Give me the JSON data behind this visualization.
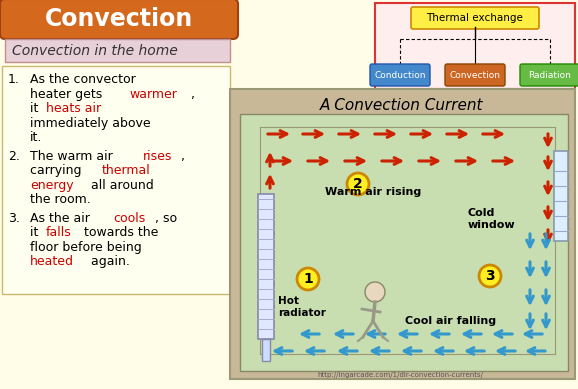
{
  "bg_color": "#fffde7",
  "title_text": "Convection",
  "title_bg": "#d4691e",
  "title_text_color": "white",
  "subtitle_text": "Convection in the home",
  "subtitle_bg": "#e8d0d8",
  "subtitle_text_color": "#333333",
  "subtitle_border": "#c09090",
  "diagram_title": "A Convection Current",
  "diagram_bg": "#c8b898",
  "room_bg": "#c8ddb0",
  "thermal_box_color": "#ffee44",
  "thermal_border": "#cc8800",
  "conduction_color": "#4488cc",
  "convection_color": "#cc6622",
  "radiation_color": "#66bb44",
  "hot_arrow_color": "#cc2200",
  "cold_arrow_color": "#3399cc",
  "url_text": "http://ingarcade.com/1/dir-convection-currents/",
  "left_panel_bg": "#fffff0",
  "left_panel_border": "#c8b870"
}
